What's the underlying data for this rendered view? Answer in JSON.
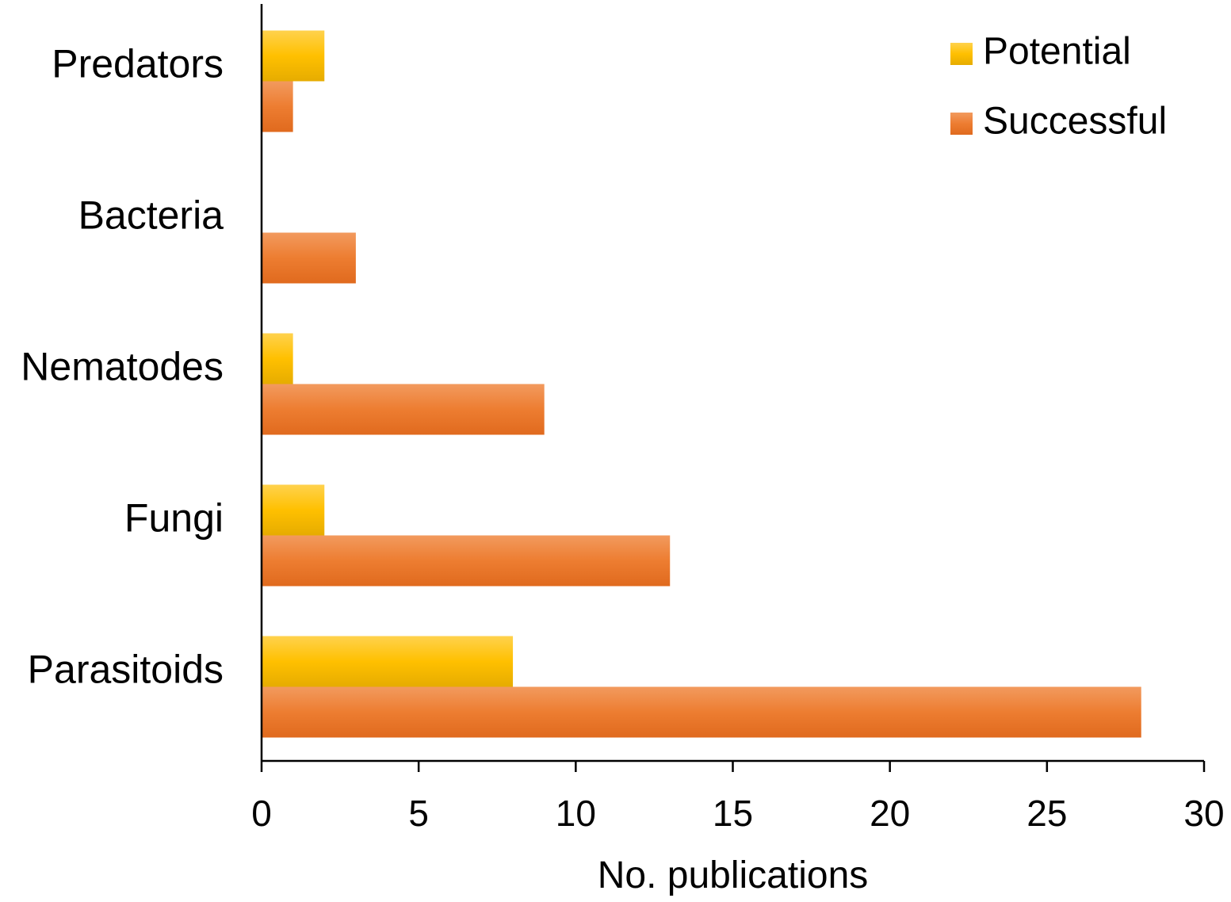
{
  "chart_data": {
    "type": "bar",
    "orientation": "horizontal",
    "categories": [
      "Predators",
      "Bacteria",
      "Nematodes",
      "Fungi",
      "Parasitoids"
    ],
    "series": [
      {
        "name": "Potential",
        "values": [
          2,
          0,
          1,
          2,
          8
        ],
        "color": "#FFC000"
      },
      {
        "name": "Successful",
        "values": [
          1,
          3,
          9,
          13,
          28
        ],
        "color": "#ED7D31"
      }
    ],
    "xlabel": "No. publications",
    "ylabel": "",
    "xlim": [
      0,
      30
    ],
    "xticks": [
      "0",
      "5",
      "10",
      "15",
      "20",
      "25",
      "30"
    ],
    "legend_position": "top-right",
    "grid": false
  }
}
